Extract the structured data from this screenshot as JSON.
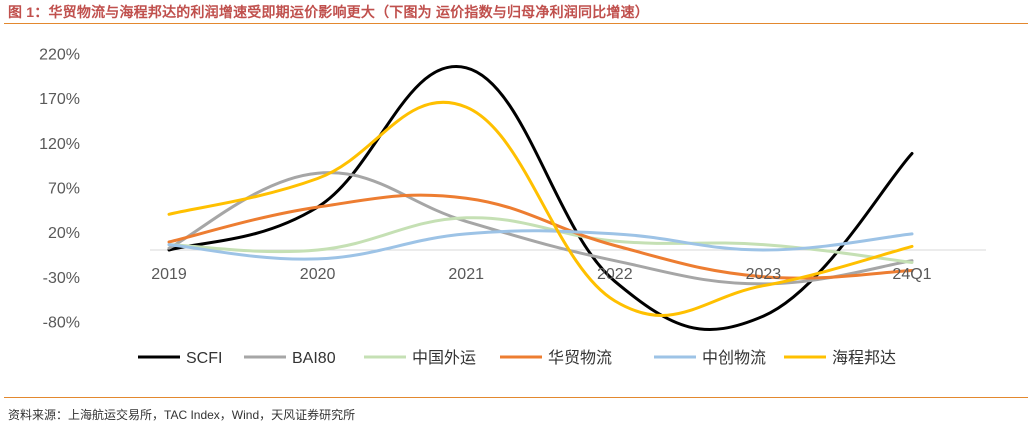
{
  "title": "图 1：华贸物流与海程邦达的利润增速受即期运价影响更大（下图为 运价指数与归母净利润同比增速）",
  "source": "资料来源：上海航运交易所，TAC Index，Wind，天风证券研究所",
  "chart_data": {
    "type": "line",
    "smooth": true,
    "categories": [
      "2019",
      "2020",
      "2021",
      "2022",
      "2023",
      "24Q1"
    ],
    "y_ticks": [
      "220%",
      "170%",
      "120%",
      "70%",
      "20%",
      "-30%",
      "-80%"
    ],
    "ylim": [
      -80,
      220
    ],
    "y_unit": "%",
    "grid": false,
    "legend_position": "bottom",
    "series": [
      {
        "name": "SCFI",
        "color": "#000000",
        "values": [
          0,
          48,
          204,
          -35,
          -74,
          108
        ]
      },
      {
        "name": "BAI80",
        "color": "#a6a6a6",
        "values": [
          2,
          86,
          32,
          -12,
          -38,
          -12
        ]
      },
      {
        "name": "中国外运",
        "color": "#c5e0b4",
        "values": [
          6,
          0,
          36,
          10,
          6,
          -14
        ]
      },
      {
        "name": "华贸物流",
        "color": "#ed7d31",
        "values": [
          9,
          48,
          58,
          5,
          -30,
          -23
        ]
      },
      {
        "name": "中创物流",
        "color": "#9dc3e6",
        "values": [
          6,
          -10,
          18,
          18,
          0,
          18
        ]
      },
      {
        "name": "海程邦达",
        "color": "#ffc000",
        "values": [
          40,
          80,
          160,
          -57,
          -40,
          4
        ]
      }
    ]
  }
}
